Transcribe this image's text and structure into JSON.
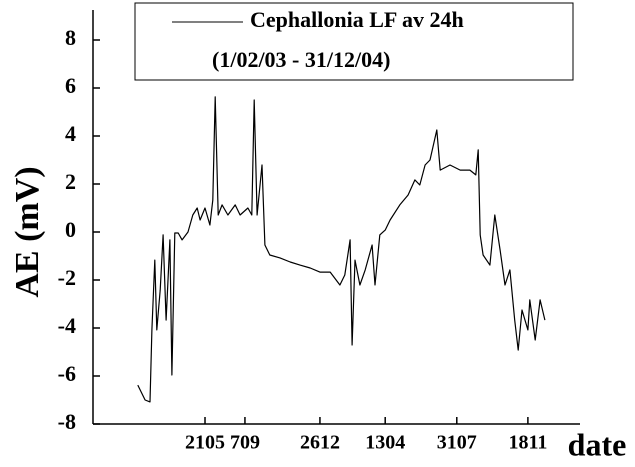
{
  "chart_data": {
    "type": "line",
    "subtitle": "(1/02/03 - 31/12/04)",
    "y_label": "AE (mV)",
    "x_label": "date",
    "x": [
      9.2,
      10.7,
      11.7,
      12.1,
      12.7,
      13.1,
      13.8,
      14.4,
      15.0,
      15.8,
      16.2,
      16.8,
      17.5,
      18.3,
      19.5,
      20.5,
      21.4,
      22.0,
      23.0,
      24.0,
      24.6,
      25.1,
      25.7,
      26.5,
      27.7,
      29.2,
      30.2,
      31.8,
      32.6,
      33.1,
      33.7,
      34.7,
      35.3,
      36.3,
      38.4,
      40.5,
      42.5,
      44.6,
      46.6,
      48.7,
      50.7,
      51.7,
      52.8,
      53.2,
      53.8,
      54.8,
      55.9,
      57.3,
      57.9,
      58.9,
      60.0,
      61.0,
      63.0,
      64.7,
      66.1,
      67.1,
      68.2,
      69.2,
      70.6,
      71.3,
      73.3,
      75.4,
      77.4,
      78.6,
      79.1,
      79.5,
      80.1,
      81.5,
      82.5,
      83.6,
      84.6,
      85.6,
      86.6,
      87.3,
      88.1,
      89.3,
      89.7,
      90.8,
      91.8,
      92.8
    ],
    "series": [
      {
        "name": "Cephallonia LF av 24h",
        "color": "#000000",
        "values": [
          -6.38,
          -7.0,
          -7.08,
          -4.08,
          -1.17,
          -4.08,
          -2.42,
          -0.12,
          -3.67,
          -0.33,
          -5.96,
          -0.04,
          -0.04,
          -0.33,
          0,
          0.71,
          1.0,
          0.5,
          1.0,
          0.29,
          1.33,
          5.63,
          0.71,
          1.13,
          0.71,
          1.13,
          0.71,
          1.0,
          0.71,
          5.5,
          0.71,
          2.79,
          -0.54,
          -0.96,
          -1.08,
          -1.25,
          -1.38,
          -1.5,
          -1.67,
          -1.67,
          -2.21,
          -1.79,
          -0.33,
          -4.71,
          -1.17,
          -2.21,
          -1.58,
          -0.54,
          -2.21,
          -0.12,
          0.08,
          0.5,
          1.13,
          1.54,
          2.17,
          1.96,
          2.79,
          3.0,
          4.25,
          2.58,
          2.79,
          2.58,
          2.58,
          2.38,
          3.42,
          -0.12,
          -0.96,
          -1.38,
          0.71,
          -0.75,
          -2.21,
          -1.58,
          -3.67,
          -4.92,
          -3.25,
          -4.08,
          -2.83,
          -4.5,
          -2.83,
          -3.67
        ]
      }
    ],
    "xlim": [
      0,
      100
    ],
    "ylim": [
      -8,
      9.25
    ],
    "xticks": [
      {
        "value": 23,
        "label": "2105"
      },
      {
        "value": 31.2,
        "label": "709"
      },
      {
        "value": 46.6,
        "label": "2612"
      },
      {
        "value": 60,
        "label": "1304"
      },
      {
        "value": 74.7,
        "label": "3107"
      },
      {
        "value": 89.3,
        "label": "1811"
      }
    ],
    "yticks": [
      -8,
      -6,
      -4,
      -2,
      0,
      2,
      4,
      6,
      8
    ]
  }
}
